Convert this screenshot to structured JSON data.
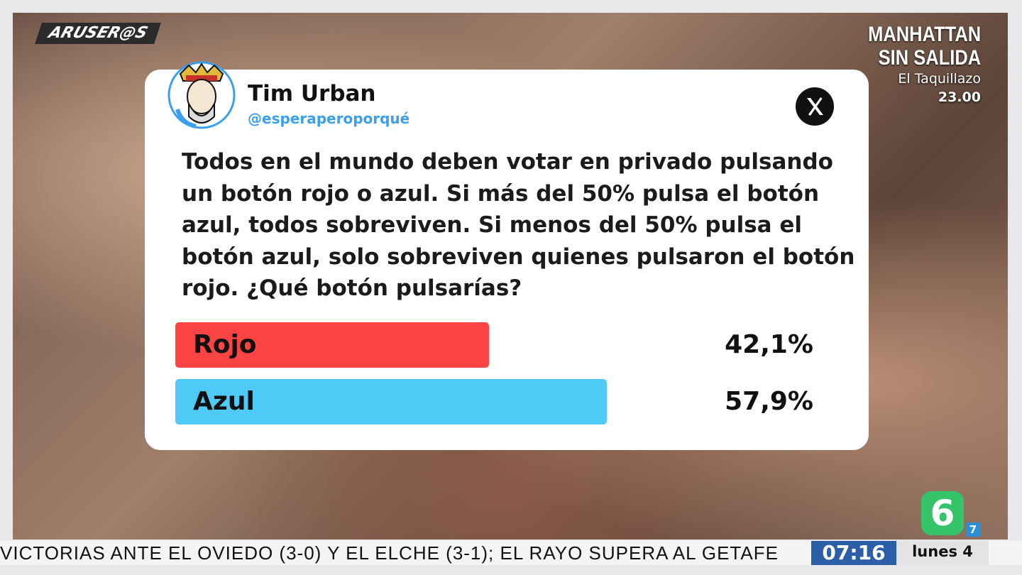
{
  "logo": "ARUSER@S",
  "promo": {
    "title": [
      "MANHATTAN",
      "SIN SALIDA"
    ],
    "show": "El Taquillazo",
    "time": "23.00"
  },
  "tweet": {
    "name": "Tim Urban",
    "handle": "@esperaperoporqué",
    "text": "Todos en el mundo deben votar en privado pulsando un botón rojo o azul. Si más del 50% pulsa el botón azul, todos sobreviven. Si menos del 50% pulsa el botón azul, solo sobreviven quienes pulsaron el botón rojo. ¿Qué botón pulsarías?",
    "poll": {
      "options": [
        {
          "label": "Rojo",
          "value": 42.1,
          "value_label": "42,1%",
          "color": "#fb4443"
        },
        {
          "label": "Azul",
          "value": 57.9,
          "value_label": "57,9%",
          "color": "#4fc9f5"
        }
      ]
    }
  },
  "ticker": {
    "text": "VICTORIAS ANTE EL OVIEDO (3-0) Y EL ELCHE (3-1); EL RAYO SUPERA AL GETAFE",
    "clock": "07:16",
    "date": "lunes 4"
  },
  "channel": {
    "logo": "6",
    "rating": "7"
  }
}
